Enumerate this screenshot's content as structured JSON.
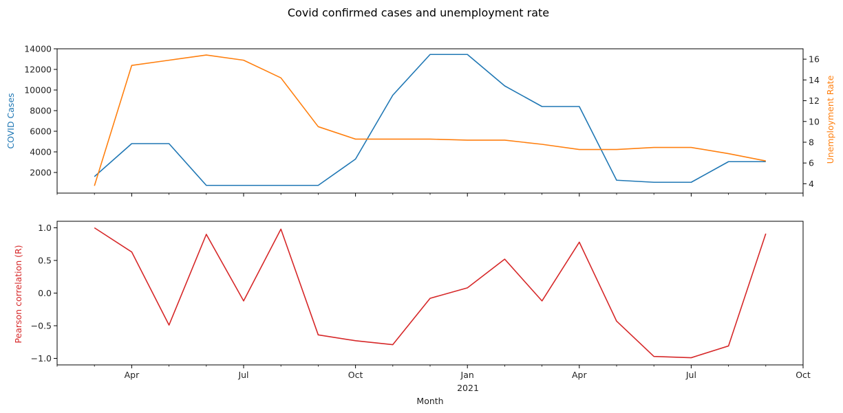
{
  "chart_data": {
    "title": "Covid confirmed cases and unemployment rate",
    "xlabel": "Month",
    "x_tick_labels": [
      {
        "label": "Apr",
        "month_index": 1
      },
      {
        "label": "Jul",
        "month_index": 4
      },
      {
        "label": "Oct",
        "month_index": 7
      },
      {
        "label": "Jan",
        "month_index": 10
      },
      {
        "label": "Apr",
        "month_index": 13
      },
      {
        "label": "Jul",
        "month_index": 16
      },
      {
        "label": "Oct",
        "month_index": 19
      }
    ],
    "year_label": "2021",
    "months": [
      "2020-03",
      "2020-04",
      "2020-05",
      "2020-06",
      "2020-07",
      "2020-08",
      "2020-09",
      "2020-10",
      "2020-11",
      "2020-12",
      "2021-01",
      "2021-02",
      "2021-03",
      "2021-04",
      "2021-05",
      "2021-06",
      "2021-07",
      "2021-08",
      "2021-09"
    ],
    "top": {
      "type": "line",
      "left_axis": {
        "ylabel": "COVID Cases",
        "color": "#1f77b4",
        "ylim": [
          0,
          14000
        ],
        "ticks": [
          2000,
          4000,
          6000,
          8000,
          10000,
          12000,
          14000
        ],
        "values": [
          1600,
          4800,
          4800,
          750,
          750,
          750,
          750,
          3300,
          9500,
          13450,
          13450,
          10400,
          8400,
          8400,
          1250,
          1050,
          1050,
          3050,
          3050
        ]
      },
      "right_axis": {
        "ylabel": "Unemployment Rate",
        "color": "#ff7f0e",
        "ylim": [
          3.1,
          17.0
        ],
        "ticks": [
          4,
          6,
          8,
          10,
          12,
          14,
          16
        ],
        "values": [
          3.8,
          15.4,
          15.9,
          16.4,
          15.9,
          14.2,
          9.5,
          8.3,
          8.3,
          8.3,
          8.2,
          8.2,
          7.8,
          7.3,
          7.3,
          7.5,
          7.5,
          6.9,
          6.2
        ]
      }
    },
    "bottom": {
      "type": "line",
      "ylabel": "Pearson correlation (R)",
      "color": "#d62728",
      "ylim": [
        -1.1,
        1.1
      ],
      "ticks": [
        -1.0,
        -0.5,
        0.0,
        0.5,
        1.0
      ],
      "tick_labels": [
        "−1.0",
        "−0.5",
        "0.0",
        "0.5",
        "1.0"
      ],
      "values": [
        1.0,
        0.63,
        -0.49,
        0.9,
        -0.12,
        0.98,
        -0.64,
        -0.73,
        -0.79,
        -0.08,
        0.08,
        0.52,
        -0.12,
        0.78,
        -0.43,
        -0.97,
        -0.99,
        -0.81,
        0.91
      ]
    }
  }
}
